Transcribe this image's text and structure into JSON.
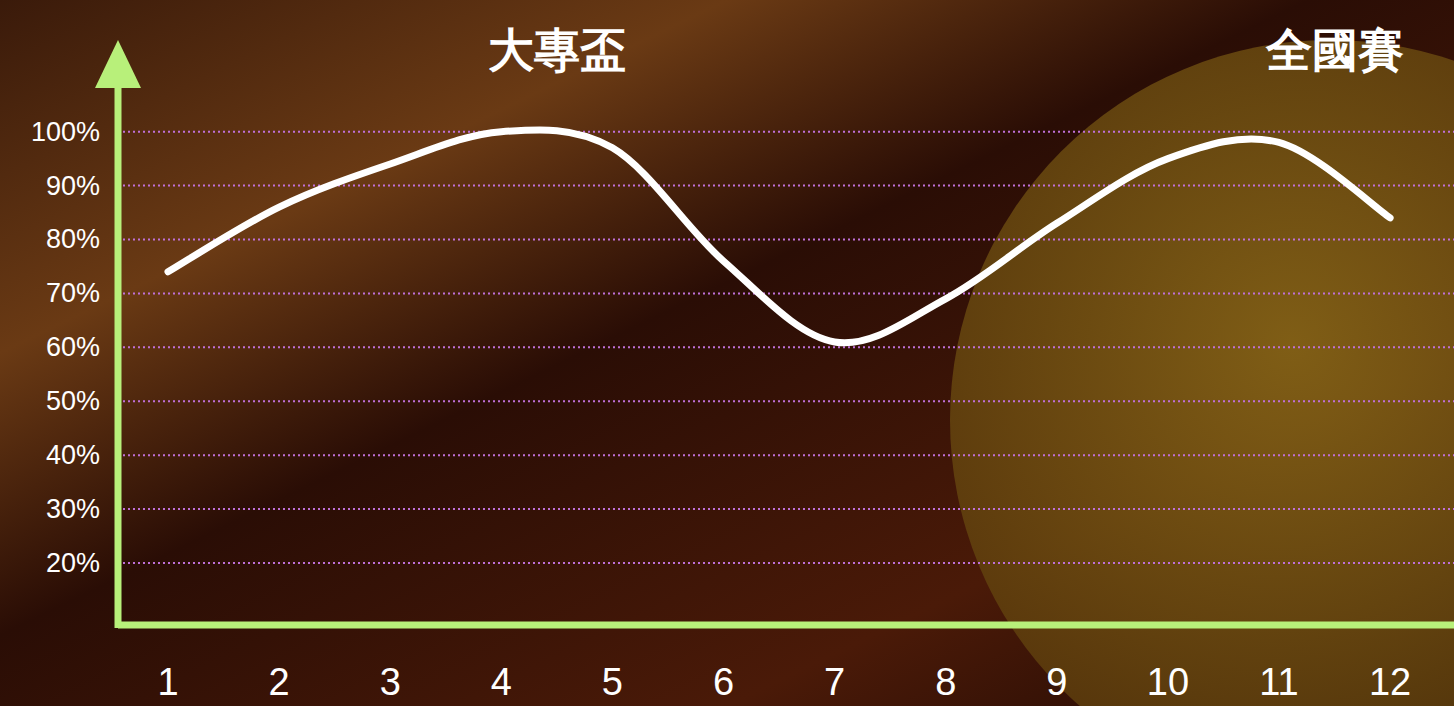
{
  "chart_data": {
    "type": "line",
    "annotations": [
      {
        "text": "大專盃",
        "x": 4.5
      },
      {
        "text": "全國賽",
        "x": 11.5
      }
    ],
    "categories": [
      "1",
      "2",
      "3",
      "4",
      "5",
      "6",
      "7",
      "8",
      "9",
      "10",
      "11",
      "12"
    ],
    "values": [
      74,
      86,
      94,
      100,
      97,
      76,
      61,
      69,
      83,
      95,
      98,
      84
    ],
    "color": "#ffffff",
    "ylim": [
      8.5,
      117
    ],
    "yticks": [
      {
        "value": 20,
        "label": "20%"
      },
      {
        "value": 30,
        "label": "30%"
      },
      {
        "value": 40,
        "label": "40%"
      },
      {
        "value": 50,
        "label": "50%"
      },
      {
        "value": 60,
        "label": "60%"
      },
      {
        "value": 70,
        "label": "70%"
      },
      {
        "value": 80,
        "label": "80%"
      },
      {
        "value": 90,
        "label": "90%"
      },
      {
        "value": 100,
        "label": "100%"
      }
    ],
    "grid": true
  }
}
